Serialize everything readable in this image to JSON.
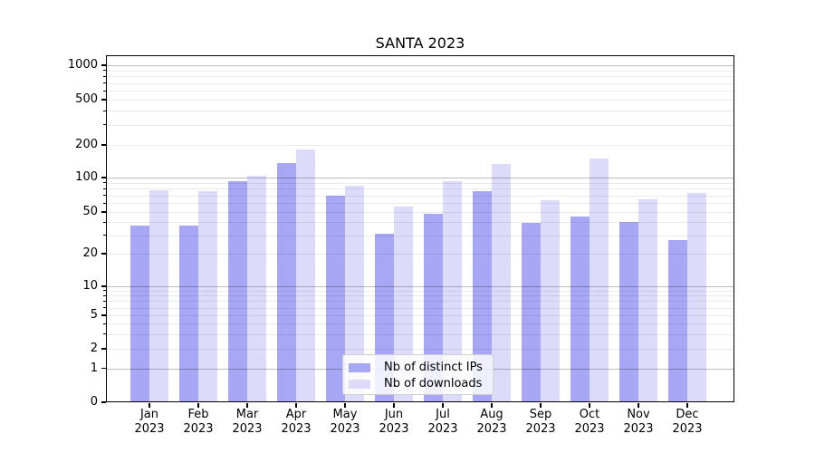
{
  "chart_data": {
    "type": "bar",
    "title": "SANTA 2023",
    "categories": [
      "Jan 2023",
      "Feb 2023",
      "Mar 2023",
      "Apr 2023",
      "May 2023",
      "Jun 2023",
      "Jul 2023",
      "Aug 2023",
      "Sep 2023",
      "Oct 2023",
      "Nov 2023",
      "Dec 2023"
    ],
    "series": [
      {
        "name": "Nb of distinct IPs",
        "color": "#a7a7f6",
        "values": [
          37,
          37,
          93,
          137,
          69,
          31,
          48,
          76,
          39,
          45,
          40,
          27
        ]
      },
      {
        "name": "Nb of downloads",
        "color": "#dcdcfa",
        "values": [
          78,
          76,
          103,
          180,
          85,
          56,
          93,
          133,
          63,
          150,
          64,
          74
        ]
      }
    ],
    "yscale": "symlog",
    "ylim": [
      0,
      1000
    ],
    "yticks": [
      0,
      1,
      2,
      5,
      10,
      20,
      50,
      100,
      200,
      500,
      1000
    ],
    "ytick_labels": [
      "0",
      "1",
      "2",
      "5",
      "10",
      "20",
      "50",
      "100",
      "200",
      "500",
      "1000"
    ],
    "xlabel": "",
    "ylabel": "",
    "grid": true,
    "legend_position": "lower center"
  }
}
